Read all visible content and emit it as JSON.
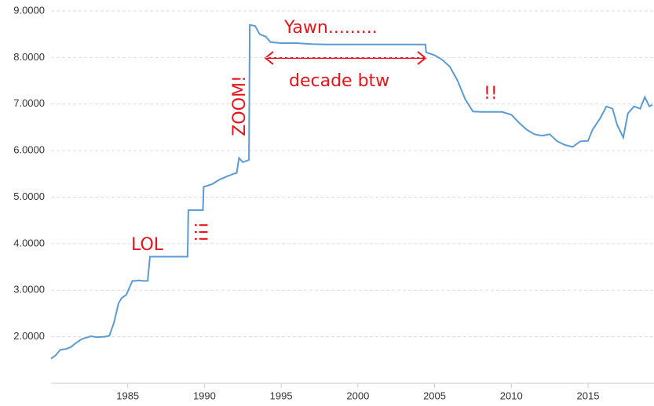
{
  "chart_data": {
    "type": "line",
    "x": [
      1980.0,
      1980.3,
      1980.6,
      1981.0,
      1981.3,
      1981.6,
      1982.0,
      1982.3,
      1982.6,
      1983.0,
      1983.5,
      1983.8,
      1984.1,
      1984.4,
      1984.6,
      1984.9,
      1985.3,
      1985.5,
      1985.7,
      1986.0,
      1986.3,
      1986.45,
      1986.5,
      1988.9,
      1988.95,
      1989.9,
      1989.95,
      1990.5,
      1991.0,
      1991.5,
      1991.9,
      1992.1,
      1992.25,
      1992.5,
      1992.9,
      1992.95,
      1993.3,
      1993.6,
      1994.0,
      1994.3,
      1995.0,
      1996.0,
      1997.0,
      1998.0,
      2000.0,
      2002.0,
      2004.4,
      2004.45,
      2005.0,
      2005.5,
      2006.0,
      2006.5,
      2007.0,
      2007.5,
      2008.0,
      2009.0,
      2009.4,
      2010.0,
      2010.5,
      2011.0,
      2011.5,
      2012.0,
      2012.5,
      2013.0,
      2013.5,
      2014.0,
      2014.5,
      2015.0,
      2015.3,
      2015.8,
      2016.2,
      2016.6,
      2016.9,
      2017.3,
      2017.6,
      2018.0,
      2018.4,
      2018.7,
      2019.0,
      2019.2
    ],
    "values": [
      1.53,
      1.6,
      1.72,
      1.74,
      1.78,
      1.86,
      1.95,
      1.98,
      2.01,
      1.99,
      2.0,
      2.02,
      2.3,
      2.72,
      2.83,
      2.9,
      3.2,
      3.2,
      3.21,
      3.2,
      3.2,
      3.72,
      3.72,
      3.72,
      4.72,
      4.72,
      5.22,
      5.28,
      5.38,
      5.45,
      5.5,
      5.52,
      5.84,
      5.75,
      5.8,
      8.7,
      8.68,
      8.5,
      8.45,
      8.33,
      8.31,
      8.31,
      8.29,
      8.28,
      8.28,
      8.28,
      8.28,
      8.11,
      8.05,
      7.95,
      7.8,
      7.5,
      7.1,
      6.84,
      6.83,
      6.83,
      6.83,
      6.77,
      6.6,
      6.45,
      6.35,
      6.32,
      6.35,
      6.2,
      6.12,
      6.08,
      6.2,
      6.21,
      6.45,
      6.7,
      6.95,
      6.9,
      6.55,
      6.28,
      6.8,
      6.95,
      6.9,
      7.15,
      6.95,
      6.98
    ],
    "color": "#5b9bd5",
    "xlim": [
      1980,
      2019.3
    ],
    "xticks": [
      1985,
      1990,
      1995,
      2000,
      2005,
      2010,
      2015
    ],
    "ylim": [
      1,
      9
    ],
    "yticks": [
      {
        "value": 2,
        "label": "2.0000"
      },
      {
        "value": 3,
        "label": "3.0000"
      },
      {
        "value": 4,
        "label": "4.0000"
      },
      {
        "value": 5,
        "label": "5.0000"
      },
      {
        "value": 6,
        "label": "6.0000"
      },
      {
        "value": 7,
        "label": "7.0000"
      },
      {
        "value": 8,
        "label": "8.0000"
      },
      {
        "value": 9,
        "label": "9.0000"
      }
    ],
    "grid": true,
    "annotations": [
      "Yawn.........",
      "decade btw",
      "LOL",
      "!!!",
      "ZOOM!",
      "!!"
    ]
  }
}
